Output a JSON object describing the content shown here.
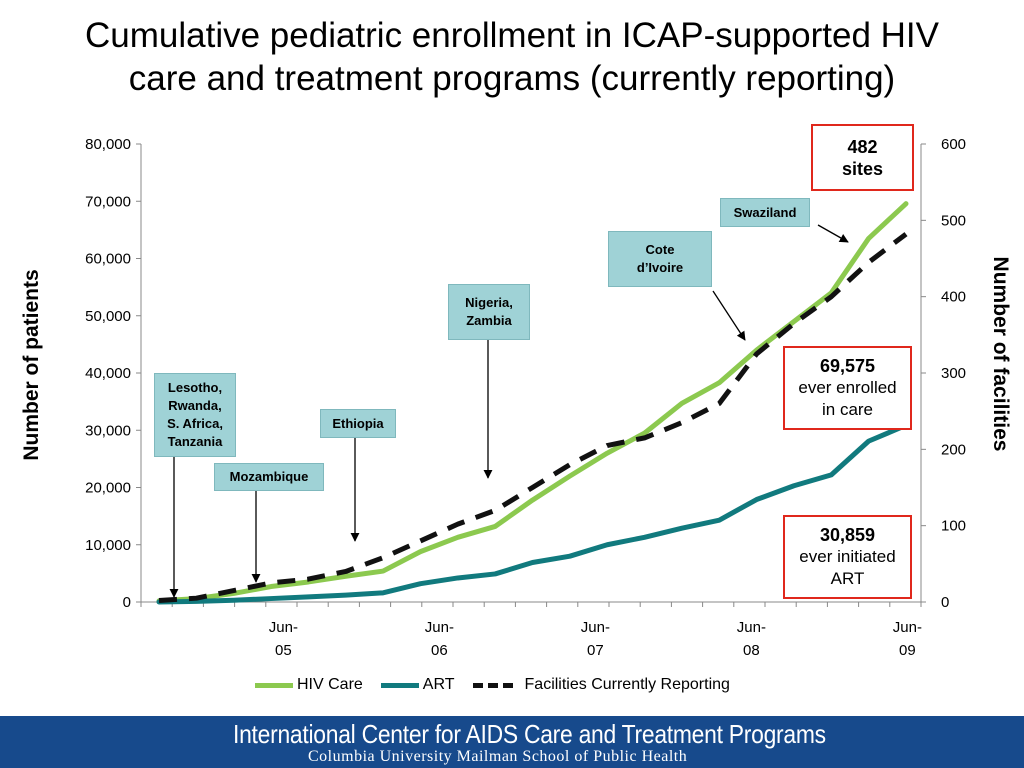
{
  "header": {
    "title_line1": "Cumulative pediatric enrollment in ICAP-supported HIV",
    "title_line2": "care and treatment programs (currently reporting)"
  },
  "chart_data": {
    "type": "line",
    "ylabel_left": "Number of patients",
    "ylabel_right": "Number of facilities",
    "ylim_left": [
      0,
      80000
    ],
    "ylim_right": [
      0,
      600
    ],
    "yticks_left": [
      "0",
      "10,000",
      "20,000",
      "30,000",
      "40,000",
      "50,000",
      "60,000",
      "70,000",
      "80,000"
    ],
    "yticks_right": [
      "0",
      "100",
      "200",
      "300",
      "400",
      "500",
      "600"
    ],
    "x_tick_labels": [
      {
        "line1": "Jun-",
        "line2": "05"
      },
      {
        "line1": "Jun-",
        "line2": "06"
      },
      {
        "line1": "Jun-",
        "line2": "07"
      },
      {
        "line1": "Jun-",
        "line2": "08"
      },
      {
        "line1": "Jun-",
        "line2": "09"
      }
    ],
    "x_count": 25,
    "x_tick_index": [
      4,
      9,
      14,
      19,
      24
    ],
    "series": [
      {
        "name": "HIV Care",
        "axis": "left",
        "color": "#8cc94f",
        "style": "solid",
        "values": [
          200,
          600,
          1500,
          2700,
          3500,
          4500,
          5400,
          8800,
          11300,
          13200,
          17800,
          22000,
          26000,
          29500,
          34700,
          38300,
          44000,
          49000,
          54000,
          63500,
          69575
        ]
      },
      {
        "name": "ART",
        "axis": "left",
        "color": "#117a7e",
        "style": "solid",
        "values": [
          0,
          100,
          300,
          600,
          900,
          1200,
          1600,
          3200,
          4200,
          4900,
          6900,
          8000,
          10000,
          11300,
          12900,
          14300,
          17900,
          20300,
          22200,
          28100,
          30859
        ]
      },
      {
        "name": "Facilities Currently Reporting",
        "axis": "right",
        "color": "#111111",
        "style": "dashed",
        "values": [
          2,
          5,
          15,
          25,
          30,
          40,
          58,
          80,
          102,
          120,
          150,
          180,
          205,
          215,
          235,
          260,
          325,
          365,
          400,
          445,
          482
        ]
      }
    ],
    "annotations": [
      {
        "label": "Lesotho, Rwanda, S. Africa, Tanzania",
        "x_index": 1
      },
      {
        "label": "Mozambique",
        "x_index": 3
      },
      {
        "label": "Ethiopia",
        "x_index": 6
      },
      {
        "label": "Nigeria, Zambia",
        "x_index": 10
      },
      {
        "label": "Cote d’Ivoire",
        "x_index": 15.7
      },
      {
        "label": "Swaziland",
        "x_index": 20
      }
    ],
    "callouts": {
      "sites": {
        "value": "482",
        "text": "sites"
      },
      "care": {
        "value": "69,575",
        "line1": "ever enrolled",
        "line2": "in care"
      },
      "art": {
        "value": "30,859",
        "line1": "ever initiated",
        "line2": "ART"
      }
    },
    "legend_placement": "bottom",
    "grid": false
  },
  "labels": {
    "lesotho_l1": "Lesotho,",
    "lesotho_l2": "Rwanda,",
    "lesotho_l3": "S. Africa,",
    "lesotho_l4": "Tanzania",
    "mozambique": "Mozambique",
    "ethiopia": "Ethiopia",
    "nigeria_l1": "Nigeria,",
    "nigeria_l2": "Zambia",
    "cote_l1": "Cote",
    "cote_l2": "d’Ivoire",
    "swaziland": "Swaziland"
  },
  "footer": {
    "line1": "International Center for AIDS Care and Treatment Programs",
    "line2": "Columbia University Mailman School of Public Health"
  },
  "colors": {
    "callout_bg": "#9fd2d6",
    "red_box": "#e0281c",
    "footer_bg": "#174a8c"
  }
}
